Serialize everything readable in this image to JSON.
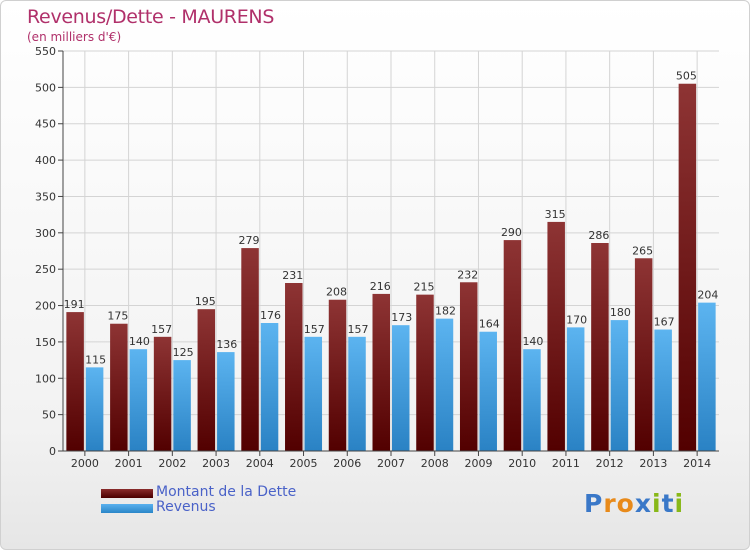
{
  "chart_data": {
    "type": "bar",
    "title": "Revenus/Dette - MAURENS",
    "subtitle": "(en milliers d'€)",
    "categories": [
      "2000",
      "2001",
      "2002",
      "2003",
      "2004",
      "2005",
      "2006",
      "2007",
      "2008",
      "2009",
      "2010",
      "2011",
      "2012",
      "2013",
      "2014"
    ],
    "series": [
      {
        "name": "Montant de la Dette",
        "color": "#7a2020",
        "values": [
          191,
          175,
          157,
          195,
          279,
          231,
          208,
          216,
          215,
          232,
          290,
          315,
          286,
          265,
          505
        ]
      },
      {
        "name": "Revenus",
        "color": "#3d9ce0",
        "values": [
          115,
          140,
          125,
          136,
          176,
          157,
          157,
          173,
          182,
          164,
          140,
          170,
          180,
          167,
          204
        ]
      }
    ],
    "ylim": [
      0,
      550
    ],
    "yticks": [
      0,
      50,
      100,
      150,
      200,
      250,
      300,
      350,
      400,
      450,
      500,
      550
    ],
    "grid": true,
    "legend": "bottom-left"
  },
  "logo": {
    "letters": [
      "P",
      "r",
      "o",
      "x",
      "i",
      "t",
      "i"
    ],
    "colors": [
      "#3a78c8",
      "#e88a1a",
      "#e88a1a",
      "#3a78c8",
      "#88b818",
      "#3a78c8",
      "#88b818"
    ]
  }
}
